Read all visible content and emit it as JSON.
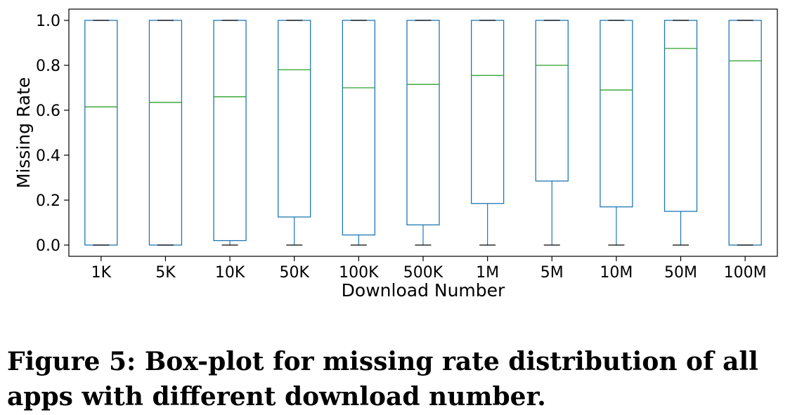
{
  "chart_data": {
    "type": "box",
    "xlabel": "Download Number",
    "ylabel": "Missing Rate",
    "ylim": [
      -0.05,
      1.05
    ],
    "yticks": [
      "0.0",
      "0.2",
      "0.4",
      "0.6",
      "0.8",
      "1.0"
    ],
    "categories": [
      "1K",
      "5K",
      "10K",
      "50K",
      "100K",
      "500K",
      "1M",
      "5M",
      "10M",
      "50M",
      "100M"
    ],
    "boxes": [
      {
        "category": "1K",
        "min": 0.0,
        "q1": 0.0,
        "median": 0.615,
        "q3": 1.0,
        "max": 1.0
      },
      {
        "category": "5K",
        "min": 0.0,
        "q1": 0.0,
        "median": 0.635,
        "q3": 1.0,
        "max": 1.0
      },
      {
        "category": "10K",
        "min": 0.0,
        "q1": 0.02,
        "median": 0.66,
        "q3": 1.0,
        "max": 1.0
      },
      {
        "category": "50K",
        "min": 0.0,
        "q1": 0.125,
        "median": 0.78,
        "q3": 1.0,
        "max": 1.0
      },
      {
        "category": "100K",
        "min": 0.0,
        "q1": 0.045,
        "median": 0.7,
        "q3": 1.0,
        "max": 1.0
      },
      {
        "category": "500K",
        "min": 0.0,
        "q1": 0.09,
        "median": 0.715,
        "q3": 1.0,
        "max": 1.0
      },
      {
        "category": "1M",
        "min": 0.0,
        "q1": 0.185,
        "median": 0.755,
        "q3": 1.0,
        "max": 1.0
      },
      {
        "category": "5M",
        "min": 0.0,
        "q1": 0.285,
        "median": 0.8,
        "q3": 1.0,
        "max": 1.0
      },
      {
        "category": "10M",
        "min": 0.0,
        "q1": 0.17,
        "median": 0.69,
        "q3": 1.0,
        "max": 1.0
      },
      {
        "category": "50M",
        "min": 0.0,
        "q1": 0.15,
        "median": 0.875,
        "q3": 1.0,
        "max": 1.0
      },
      {
        "category": "100M",
        "min": 0.0,
        "q1": 0.0,
        "median": 0.82,
        "q3": 1.0,
        "max": 1.0
      }
    ],
    "colors": {
      "box": "#1f77b4",
      "median": "#2ca02c",
      "cap": "#000000"
    },
    "grid": false,
    "legend": "none"
  },
  "caption": "Figure 5: Box-plot for missing rate distribution of all apps with different download number."
}
